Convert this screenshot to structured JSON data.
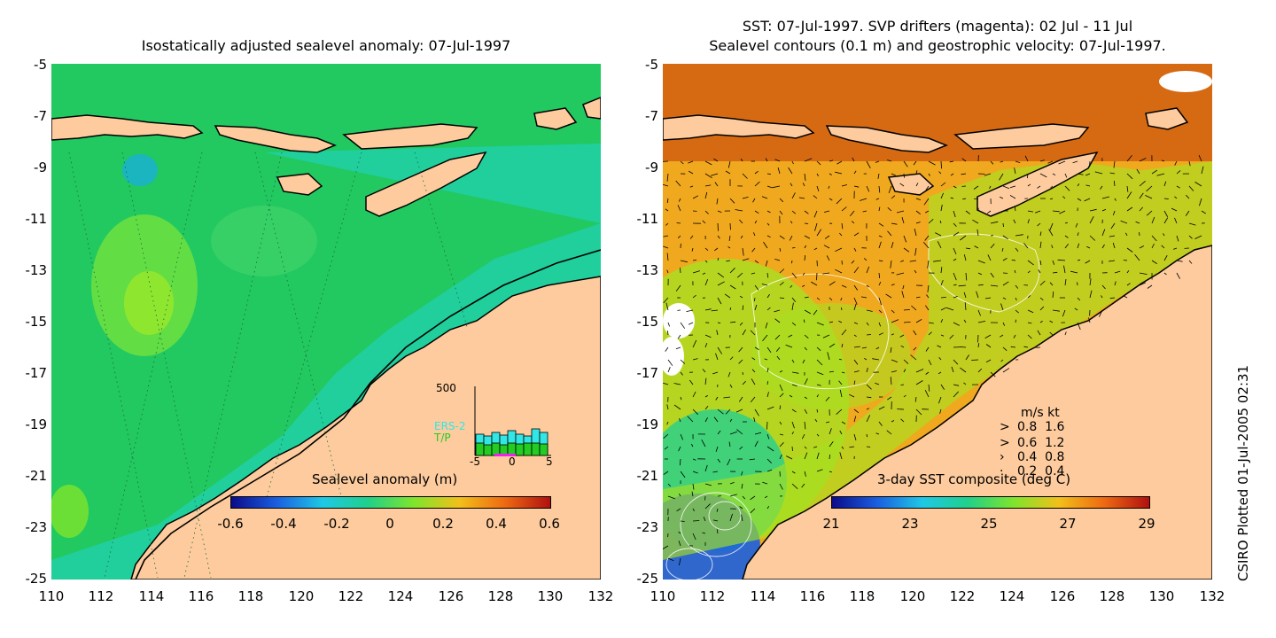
{
  "left_panel": {
    "title": "Isostatically adjusted sealevel anomaly: 07-Jul-1997",
    "y_ticks": [
      "-5",
      "-7",
      "-9",
      "-11",
      "-13",
      "-15",
      "-17",
      "-19",
      "-21",
      "-23",
      "-25"
    ],
    "x_ticks": [
      "110",
      "112",
      "114",
      "116",
      "118",
      "120",
      "122",
      "124",
      "126",
      "128",
      "130",
      "132"
    ],
    "colorbar": {
      "label": "Sealevel anomaly (m)",
      "ticks": [
        "-0.6",
        "-0.4",
        "-0.2",
        "0",
        "0.2",
        "0.4",
        "0.6"
      ],
      "colors": [
        "#0b0b8a",
        "#1a5fe0",
        "#1fc8e6",
        "#20d08a",
        "#7ee52c",
        "#f2c01a",
        "#ee6a12",
        "#b01010"
      ]
    },
    "inset": {
      "ytick": "500",
      "labels": [
        "ERS-2",
        "T/P"
      ],
      "xticks": [
        "-5",
        "0",
        "5"
      ],
      "colors": {
        "ers2": "#33e6e6",
        "tp": "#22cc22",
        "marker": "#ee22ee"
      }
    }
  },
  "right_panel": {
    "title_line1": "SST: 07-Jul-1997. SVP drifters (magenta): 02 Jul - 11 Jul",
    "title_line2": "Sealevel contours (0.1 m) and geostrophic velocity: 07-Jul-1997.",
    "y_ticks": [
      "-5",
      "-7",
      "-9",
      "-11",
      "-13",
      "-15",
      "-17",
      "-19",
      "-21",
      "-23",
      "-25"
    ],
    "x_ticks": [
      "110",
      "112",
      "114",
      "116",
      "118",
      "120",
      "122",
      "124",
      "126",
      "128",
      "130",
      "132"
    ],
    "colorbar": {
      "label": "3-day SST composite (deg C)",
      "ticks": [
        "21",
        "23",
        "25",
        "27",
        "29"
      ],
      "colors": [
        "#0b0b8a",
        "#1a5fe0",
        "#1fc8e6",
        "#20d08a",
        "#7ee52c",
        "#f2c01a",
        "#ee6a12",
        "#b01010"
      ]
    },
    "velocity_legend": {
      "header": "m/s  kt",
      "rows": [
        {
          "ms": "0.8",
          "kt": "1.6"
        },
        {
          "ms": "0.6",
          "kt": "1.2"
        },
        {
          "ms": "0.4",
          "kt": "0.8"
        },
        {
          "ms": "0.2",
          "kt": "0.4"
        }
      ]
    }
  },
  "map_colors": {
    "land": "#fdcb9d",
    "ssh_ocean": "#22c860",
    "ssh_shelf": "#20d2b0",
    "sst_warm": "#f0a81e",
    "sst_hot": "#d05a10",
    "sst_mid": "#a8e020",
    "sst_cool": "#24d090",
    "sst_cold": "#1a5fe0"
  },
  "credit": "CSIRO Plotted 01-Jul-2005 02:31"
}
